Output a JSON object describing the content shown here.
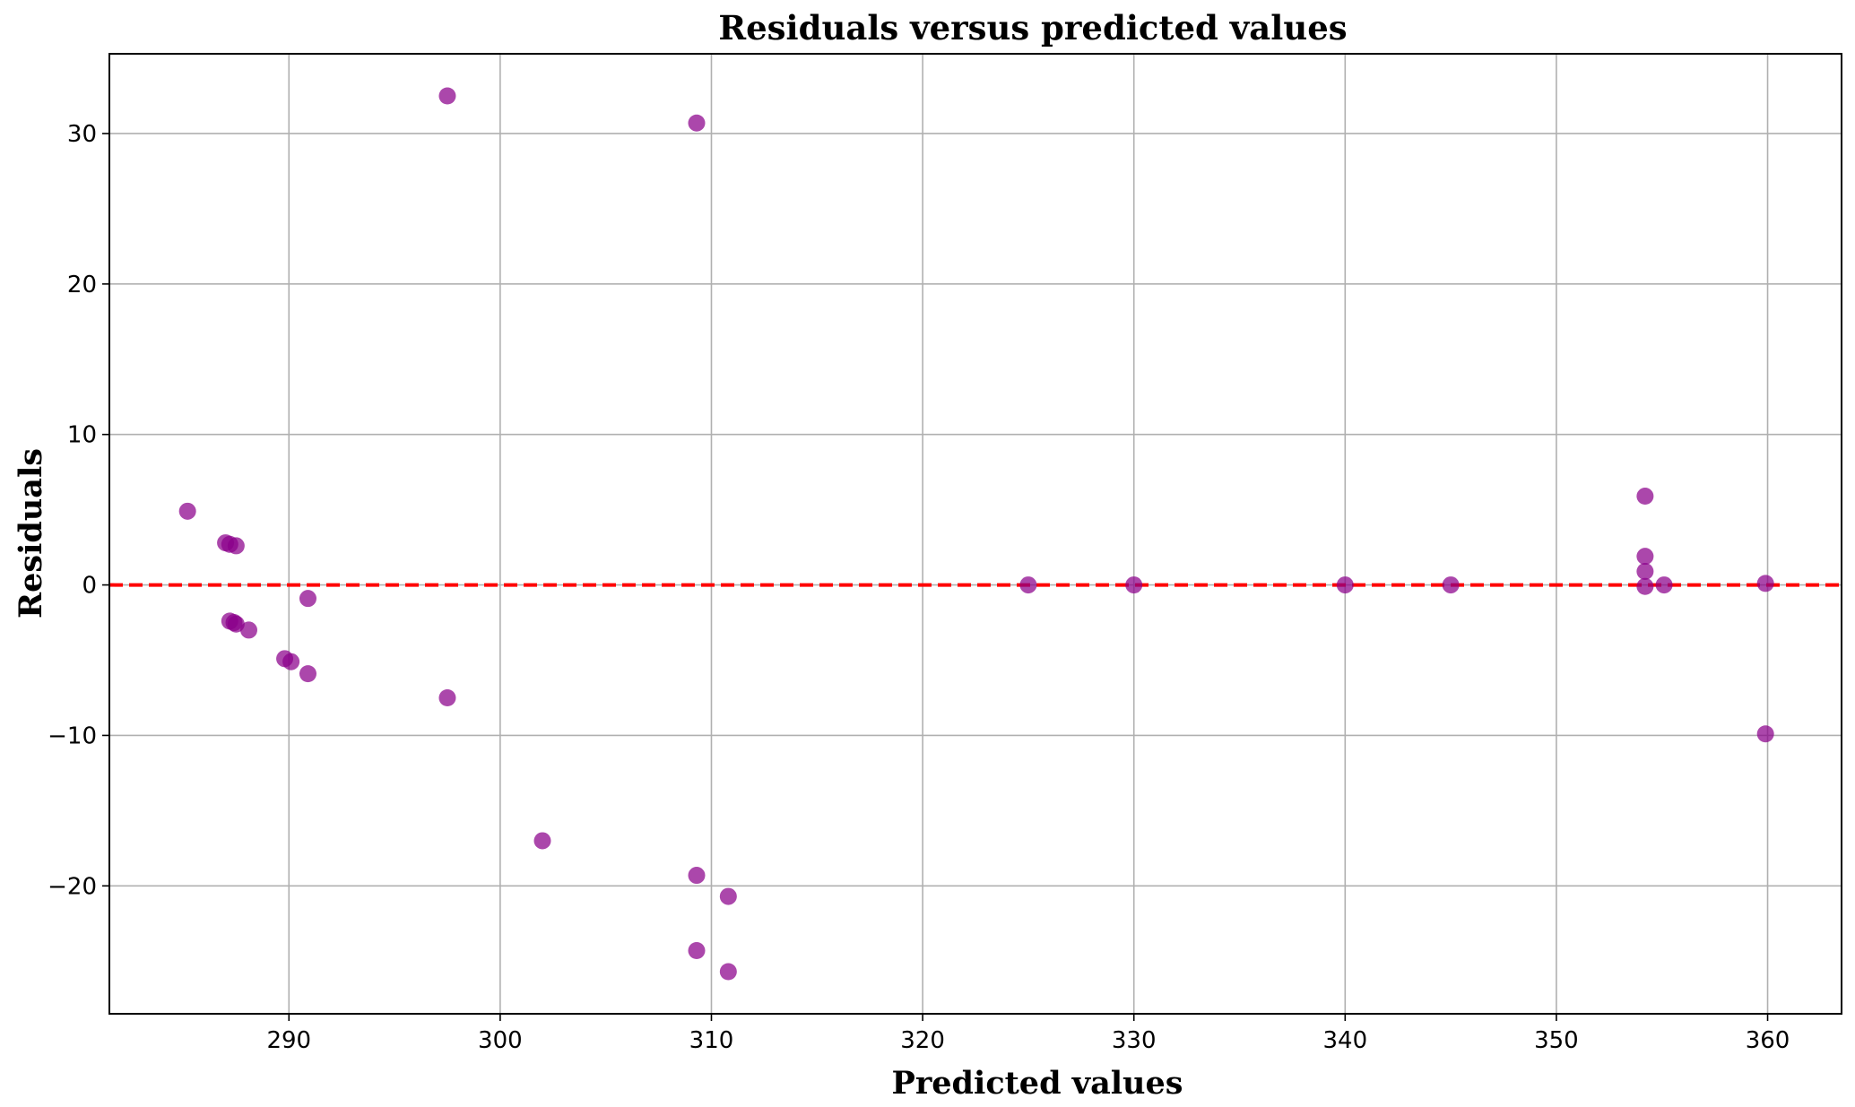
{
  "chart_data": {
    "type": "scatter",
    "title": "Residuals versus predicted values",
    "xlabel": "Predicted values",
    "ylabel": "Residuals",
    "xlim": [
      281.5,
      363.5
    ],
    "ylim": [
      -28.5,
      35.3
    ],
    "xticks": [
      290,
      300,
      310,
      320,
      330,
      340,
      350,
      360
    ],
    "xtick_labels": [
      "290",
      "300",
      "310",
      "320",
      "330",
      "340",
      "350",
      "360"
    ],
    "yticks": [
      -20,
      -10,
      0,
      10,
      20,
      30
    ],
    "ytick_labels": [
      "−20",
      "−10",
      "0",
      "10",
      "20",
      "30"
    ],
    "grid": true,
    "reference_line": {
      "y": 0,
      "style": "dashed",
      "color": "#ff0000"
    },
    "series": [
      {
        "name": "residuals",
        "color": "#8b008b",
        "points": [
          {
            "x": 285.2,
            "y": 4.9
          },
          {
            "x": 287.0,
            "y": 2.8
          },
          {
            "x": 287.2,
            "y": 2.7
          },
          {
            "x": 287.5,
            "y": 2.6
          },
          {
            "x": 287.2,
            "y": -2.4
          },
          {
            "x": 287.4,
            "y": -2.5
          },
          {
            "x": 287.5,
            "y": -2.6
          },
          {
            "x": 288.1,
            "y": -3.0
          },
          {
            "x": 289.8,
            "y": -4.9
          },
          {
            "x": 290.1,
            "y": -5.1
          },
          {
            "x": 290.9,
            "y": -0.9
          },
          {
            "x": 290.9,
            "y": -5.9
          },
          {
            "x": 297.5,
            "y": 32.5
          },
          {
            "x": 297.5,
            "y": -7.5
          },
          {
            "x": 302.0,
            "y": -17.0
          },
          {
            "x": 309.3,
            "y": 30.7
          },
          {
            "x": 309.3,
            "y": -19.3
          },
          {
            "x": 309.3,
            "y": -24.3
          },
          {
            "x": 310.8,
            "y": -20.7
          },
          {
            "x": 310.8,
            "y": -25.7
          },
          {
            "x": 325.0,
            "y": 0.0
          },
          {
            "x": 330.0,
            "y": 0.0
          },
          {
            "x": 340.0,
            "y": 0.0
          },
          {
            "x": 345.0,
            "y": 0.0
          },
          {
            "x": 354.2,
            "y": 5.9
          },
          {
            "x": 354.2,
            "y": 1.9
          },
          {
            "x": 354.2,
            "y": 0.9
          },
          {
            "x": 354.2,
            "y": -0.1
          },
          {
            "x": 355.1,
            "y": 0.0
          },
          {
            "x": 359.9,
            "y": 0.1
          },
          {
            "x": 359.9,
            "y": -9.9
          }
        ]
      }
    ]
  }
}
